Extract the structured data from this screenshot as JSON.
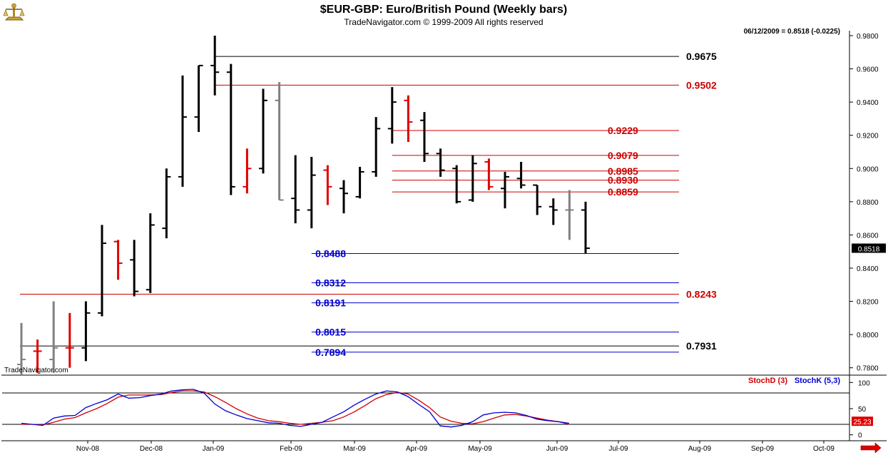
{
  "header": {
    "title": "$EUR-GBP:  Euro/British Pound  (Weekly bars)",
    "subtitle": "TradeNavigator.com © 1999-2009 All rights reserved",
    "last_info": "06/12/2009 = 0.8518 (-0.0225)",
    "watermark": "TradeNavigator.com",
    "logo_icon": "scales-icon"
  },
  "colors": {
    "black_bar": "#000000",
    "red_bar": "#e00000",
    "gray_bar": "#808080",
    "red_level": "#cc0000",
    "blue_level": "#0000cc",
    "stoch_d": "#d00000",
    "stoch_k": "#0000d0"
  },
  "chart_data": [
    {
      "type": "ohlc",
      "x_labels": [
        "Nov-08",
        "Dec-08",
        "Jan-09",
        "Feb-09",
        "Mar-09",
        "Apr-09",
        "May-09",
        "Jun-09",
        "Jul-09",
        "Aug-09",
        "Sep-09",
        "Oct-09"
      ],
      "ylim": [
        0.776,
        0.983
      ],
      "yticks": [
        "0.7800",
        "0.8000",
        "0.8200",
        "0.8400",
        "0.8600",
        "0.8800",
        "0.9000",
        "0.9200",
        "0.9400",
        "0.9600",
        "0.9800"
      ],
      "last_price": "0.8518",
      "bars": [
        {
          "o": 0.782,
          "h": 0.807,
          "l": 0.776,
          "c": 0.785,
          "color": "gray"
        },
        {
          "o": 0.79,
          "h": 0.797,
          "l": 0.777,
          "c": 0.79,
          "color": "red"
        },
        {
          "o": 0.785,
          "h": 0.82,
          "l": 0.777,
          "c": 0.792,
          "color": "gray"
        },
        {
          "o": 0.792,
          "h": 0.813,
          "l": 0.78,
          "c": 0.792,
          "color": "red"
        },
        {
          "o": 0.792,
          "h": 0.82,
          "l": 0.784,
          "c": 0.813,
          "color": "black"
        },
        {
          "o": 0.813,
          "h": 0.866,
          "l": 0.811,
          "c": 0.855,
          "color": "black"
        },
        {
          "o": 0.856,
          "h": 0.857,
          "l": 0.833,
          "c": 0.843,
          "color": "red"
        },
        {
          "o": 0.845,
          "h": 0.857,
          "l": 0.823,
          "c": 0.826,
          "color": "black"
        },
        {
          "o": 0.827,
          "h": 0.873,
          "l": 0.825,
          "c": 0.866,
          "color": "black"
        },
        {
          "o": 0.864,
          "h": 0.9,
          "l": 0.858,
          "c": 0.895,
          "color": "black"
        },
        {
          "o": 0.895,
          "h": 0.956,
          "l": 0.889,
          "c": 0.931,
          "color": "black"
        },
        {
          "o": 0.931,
          "h": 0.962,
          "l": 0.922,
          "c": 0.962,
          "color": "black"
        },
        {
          "o": 0.962,
          "h": 0.98,
          "l": 0.944,
          "c": 0.958,
          "color": "black"
        },
        {
          "o": 0.958,
          "h": 0.963,
          "l": 0.884,
          "c": 0.889,
          "color": "black"
        },
        {
          "o": 0.889,
          "h": 0.912,
          "l": 0.885,
          "c": 0.9,
          "color": "red"
        },
        {
          "o": 0.9,
          "h": 0.948,
          "l": 0.897,
          "c": 0.941,
          "color": "black"
        },
        {
          "o": 0.941,
          "h": 0.952,
          "l": 0.881,
          "c": 0.881,
          "color": "gray"
        },
        {
          "o": 0.882,
          "h": 0.908,
          "l": 0.867,
          "c": 0.875,
          "color": "black"
        },
        {
          "o": 0.875,
          "h": 0.907,
          "l": 0.864,
          "c": 0.896,
          "color": "black"
        },
        {
          "o": 0.899,
          "h": 0.902,
          "l": 0.878,
          "c": 0.889,
          "color": "red"
        },
        {
          "o": 0.888,
          "h": 0.893,
          "l": 0.873,
          "c": 0.885,
          "color": "black"
        },
        {
          "o": 0.883,
          "h": 0.901,
          "l": 0.882,
          "c": 0.898,
          "color": "black"
        },
        {
          "o": 0.898,
          "h": 0.931,
          "l": 0.895,
          "c": 0.924,
          "color": "black"
        },
        {
          "o": 0.924,
          "h": 0.949,
          "l": 0.915,
          "c": 0.94,
          "color": "black"
        },
        {
          "o": 0.941,
          "h": 0.944,
          "l": 0.916,
          "c": 0.928,
          "color": "red"
        },
        {
          "o": 0.929,
          "h": 0.934,
          "l": 0.904,
          "c": 0.909,
          "color": "black"
        },
        {
          "o": 0.909,
          "h": 0.912,
          "l": 0.895,
          "c": 0.899,
          "color": "black"
        },
        {
          "o": 0.9,
          "h": 0.902,
          "l": 0.879,
          "c": 0.88,
          "color": "black"
        },
        {
          "o": 0.881,
          "h": 0.908,
          "l": 0.88,
          "c": 0.903,
          "color": "black"
        },
        {
          "o": 0.904,
          "h": 0.906,
          "l": 0.887,
          "c": 0.889,
          "color": "red"
        },
        {
          "o": 0.888,
          "h": 0.898,
          "l": 0.876,
          "c": 0.895,
          "color": "black"
        },
        {
          "o": 0.894,
          "h": 0.904,
          "l": 0.888,
          "c": 0.89,
          "color": "black"
        },
        {
          "o": 0.89,
          "h": 0.89,
          "l": 0.872,
          "c": 0.877,
          "color": "black"
        },
        {
          "o": 0.877,
          "h": 0.882,
          "l": 0.866,
          "c": 0.875,
          "color": "black"
        },
        {
          "o": 0.875,
          "h": 0.887,
          "l": 0.857,
          "c": 0.875,
          "color": "gray"
        },
        {
          "o": 0.875,
          "h": 0.88,
          "l": 0.849,
          "c": 0.852,
          "color": "black"
        }
      ],
      "levels": [
        {
          "label": "0.9675",
          "value": 0.9675,
          "color": "black",
          "from": 12
        },
        {
          "label": "0.9502",
          "value": 0.9502,
          "color": "red",
          "from": 12
        },
        {
          "label": "0.9229",
          "value": 0.9229,
          "color": "red",
          "from": 23
        },
        {
          "label": "0.9079",
          "value": 0.9079,
          "color": "red",
          "from": 23
        },
        {
          "label": "0.8985",
          "value": 0.8985,
          "color": "red",
          "from": 23
        },
        {
          "label": "0.8930",
          "value": 0.893,
          "color": "red",
          "from": 23
        },
        {
          "label": "0.8859",
          "value": 0.8859,
          "color": "red",
          "from": 23
        },
        {
          "label": "0.8488",
          "value": 0.8488,
          "color": "blue",
          "from": 18
        },
        {
          "label": "0.8312",
          "value": 0.8312,
          "color": "blue",
          "from": 18
        },
        {
          "label": "0.8243",
          "value": 0.8243,
          "color": "red",
          "from": 0
        },
        {
          "label": "0.8191",
          "value": 0.8191,
          "color": "blue",
          "from": 18
        },
        {
          "label": "0.8015",
          "value": 0.8015,
          "color": "blue",
          "from": 18
        },
        {
          "label": "0.7931",
          "value": 0.7931,
          "color": "black",
          "from": 0
        },
        {
          "label": "0.7894",
          "value": 0.7894,
          "color": "blue",
          "from": 18
        }
      ]
    },
    {
      "type": "line",
      "ylim": [
        -10,
        110
      ],
      "yticks": [
        "100",
        "50",
        "0"
      ],
      "reference_lines": [
        80,
        20
      ],
      "series": [
        {
          "name": "StochD (3)",
          "color": "red",
          "values": [
            20,
            20,
            19,
            24,
            30,
            33,
            42,
            50,
            60,
            72,
            76,
            76,
            76,
            77,
            81,
            84,
            84,
            82,
            73,
            62,
            50,
            40,
            32,
            27,
            25,
            22,
            20,
            22,
            24,
            27,
            34,
            44,
            56,
            69,
            77,
            81,
            78,
            66,
            52,
            34,
            26,
            22,
            21,
            25,
            32,
            38,
            39,
            36,
            32,
            28,
            25,
            20
          ]
        },
        {
          "name": "StochK (5,3)",
          "color": "blue",
          "values": [
            22,
            20,
            18,
            32,
            36,
            37,
            52,
            60,
            67,
            78,
            70,
            71,
            75,
            78,
            84,
            86,
            87,
            80,
            59,
            46,
            38,
            31,
            27,
            23,
            22,
            18,
            16,
            20,
            24,
            34,
            44,
            57,
            68,
            78,
            84,
            82,
            73,
            58,
            44,
            17,
            15,
            18,
            25,
            38,
            42,
            43,
            42,
            37,
            30,
            27,
            25,
            22
          ]
        }
      ],
      "last_value": "25.23"
    }
  ]
}
